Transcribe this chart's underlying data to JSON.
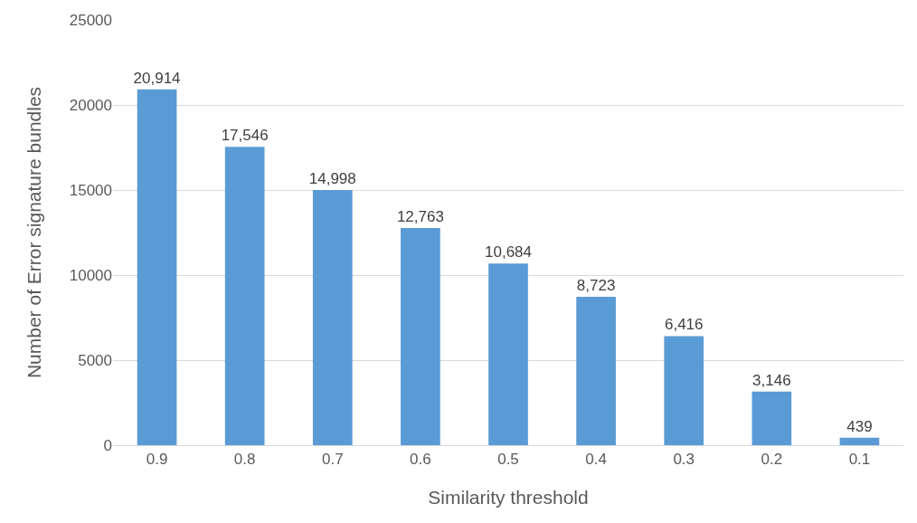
{
  "chart_data": {
    "type": "bar",
    "xlabel": "Similarity threshold",
    "ylabel": "Number of Error signature bundles",
    "categories": [
      "0.9",
      "0.8",
      "0.7",
      "0.6",
      "0.5",
      "0.4",
      "0.3",
      "0.2",
      "0.1"
    ],
    "values": [
      20914,
      17546,
      14998,
      12763,
      10684,
      8723,
      6416,
      3146,
      439
    ],
    "value_labels": [
      "20,914",
      "17,546",
      "14,998",
      "12,763",
      "10,684",
      "8,723",
      "6,416",
      "3,146",
      "439"
    ],
    "color": "#5b9bd5",
    "ylim": [
      0,
      25000
    ],
    "yticks": [
      0,
      5000,
      10000,
      15000,
      20000,
      25000
    ],
    "grid": "y"
  }
}
